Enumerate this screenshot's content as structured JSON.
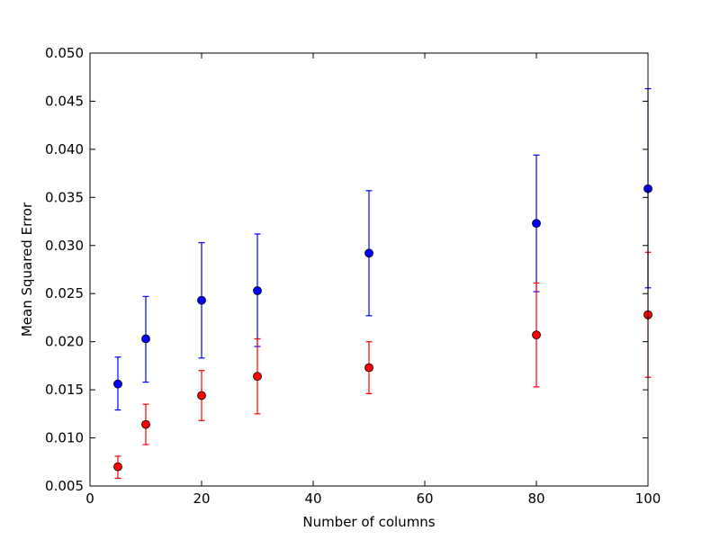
{
  "chart_data": {
    "type": "scatter",
    "title": "",
    "xlabel": "Number of columns",
    "ylabel": "Mean Squared Error",
    "xlim": [
      0,
      100
    ],
    "ylim": [
      0.005,
      0.05
    ],
    "xticks": [
      0,
      20,
      40,
      60,
      80,
      100
    ],
    "xtick_labels": [
      "0",
      "20",
      "40",
      "60",
      "80",
      "100"
    ],
    "yticks": [
      0.005,
      0.01,
      0.015,
      0.02,
      0.025,
      0.03,
      0.035,
      0.04,
      0.045,
      0.05
    ],
    "ytick_labels": [
      "0.005",
      "0.010",
      "0.015",
      "0.020",
      "0.025",
      "0.030",
      "0.035",
      "0.040",
      "0.045",
      "0.050"
    ],
    "grid": false,
    "series": [
      {
        "color": "#0000ff",
        "x": [
          5,
          10,
          20,
          30,
          50,
          80,
          100
        ],
        "y": [
          0.0156,
          0.0203,
          0.0243,
          0.0253,
          0.0292,
          0.0323,
          0.0359
        ],
        "err_low": [
          0.0129,
          0.0158,
          0.0183,
          0.0195,
          0.0227,
          0.0252,
          0.0256
        ],
        "err_high": [
          0.0184,
          0.0247,
          0.0303,
          0.0312,
          0.0357,
          0.0394,
          0.0463
        ]
      },
      {
        "color": "#ff0000",
        "x": [
          5,
          10,
          20,
          30,
          50,
          80,
          100
        ],
        "y": [
          0.007,
          0.0114,
          0.0144,
          0.0164,
          0.0173,
          0.0207,
          0.0228
        ],
        "err_low": [
          0.0058,
          0.0093,
          0.0118,
          0.0125,
          0.0146,
          0.0153,
          0.0163
        ],
        "err_high": [
          0.0081,
          0.0135,
          0.017,
          0.0203,
          0.02,
          0.0261,
          0.0293
        ]
      }
    ]
  }
}
